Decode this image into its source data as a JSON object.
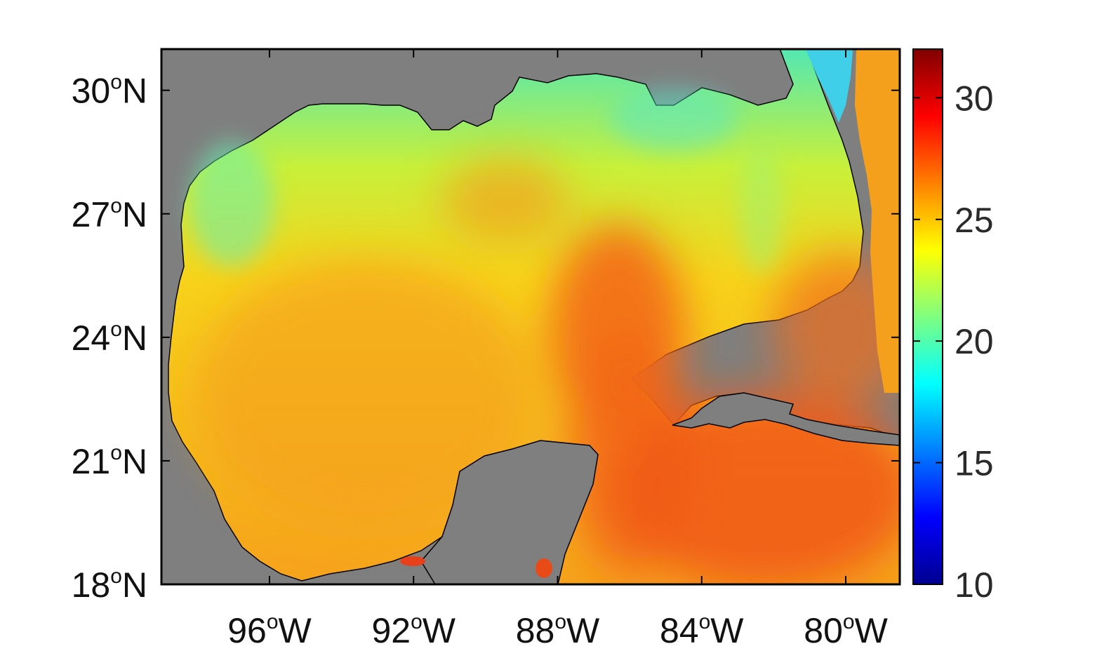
{
  "map": {
    "lon_range": [
      -99,
      -78.5
    ],
    "lat_range": [
      18,
      31
    ],
    "land_color": "#7f7f7f",
    "colormap": "jet",
    "colorbar": {
      "min": 10,
      "max": 32,
      "ticks": [
        {
          "label": "10",
          "value": 10
        },
        {
          "label": "15",
          "value": 15
        },
        {
          "label": "20",
          "value": 20
        },
        {
          "label": "25",
          "value": 25
        },
        {
          "label": "30",
          "value": 30
        }
      ]
    },
    "lon_ticks": [
      {
        "num": "96",
        "deg": "o",
        "hemi": "W",
        "value": -96
      },
      {
        "num": "92",
        "deg": "o",
        "hemi": "W",
        "value": -92
      },
      {
        "num": "88",
        "deg": "o",
        "hemi": "W",
        "value": -88
      },
      {
        "num": "84",
        "deg": "o",
        "hemi": "W",
        "value": -84
      },
      {
        "num": "80",
        "deg": "o",
        "hemi": "W",
        "value": -80
      }
    ],
    "lat_ticks": [
      {
        "num": "18",
        "deg": "o",
        "hemi": "N",
        "value": 18
      },
      {
        "num": "21",
        "deg": "o",
        "hemi": "N",
        "value": 21
      },
      {
        "num": "24",
        "deg": "o",
        "hemi": "N",
        "value": 24
      },
      {
        "num": "27",
        "deg": "o",
        "hemi": "N",
        "value": 27
      },
      {
        "num": "30",
        "deg": "o",
        "hemi": "N",
        "value": 30
      }
    ]
  }
}
